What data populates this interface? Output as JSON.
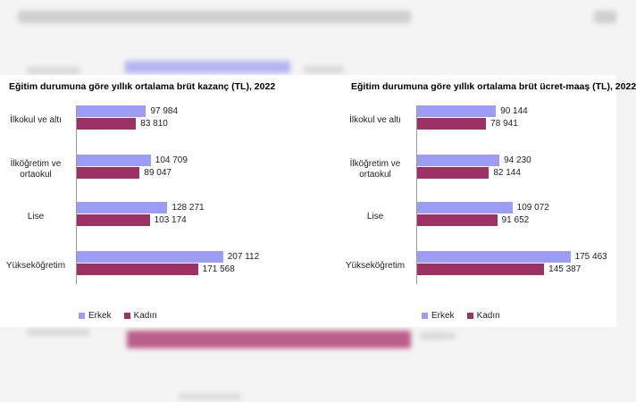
{
  "chart_data": [
    {
      "type": "bar",
      "orientation": "horizontal",
      "title": "Eğitim durumuna göre yıllık ortalama brüt kazanç (TL), 2022",
      "categories": [
        "İlkokul ve altı",
        "İlköğretim ve ortaokul",
        "Lise",
        "Yükseköğretim"
      ],
      "series": [
        {
          "name": "Erkek",
          "color": "#9d9df7",
          "values": [
            97984,
            104709,
            128271,
            207112
          ],
          "labels": [
            "97 984",
            "104 709",
            "128 271",
            "207 112"
          ]
        },
        {
          "name": "Kadın",
          "color": "#9b3263",
          "values": [
            83810,
            89047,
            103174,
            171568
          ],
          "labels": [
            "83 810",
            "89 047",
            "103 174",
            "171 568"
          ]
        }
      ],
      "legend_position": "bottom-left"
    },
    {
      "type": "bar",
      "orientation": "horizontal",
      "title": "Eğitim durumuna göre yıllık ortalama brüt ücret-maaş (TL), 2022",
      "categories": [
        "İlkokul ve altı",
        "İlköğretim ve ortaokul",
        "Lise",
        "Yükseköğretim"
      ],
      "series": [
        {
          "name": "Erkek",
          "color": "#9d9df7",
          "values": [
            90144,
            94230,
            109072,
            175463
          ],
          "labels": [
            "90 144",
            "94 230",
            "109 072",
            "175 463"
          ]
        },
        {
          "name": "Kadın",
          "color": "#9b3263",
          "values": [
            78941,
            82144,
            91652,
            145387
          ],
          "labels": [
            "78 941",
            "82 144",
            "91 652",
            "145 387"
          ]
        }
      ],
      "legend_position": "bottom-left"
    }
  ],
  "colors": {
    "erkek": "#9d9df7",
    "kadin": "#9b3263"
  }
}
